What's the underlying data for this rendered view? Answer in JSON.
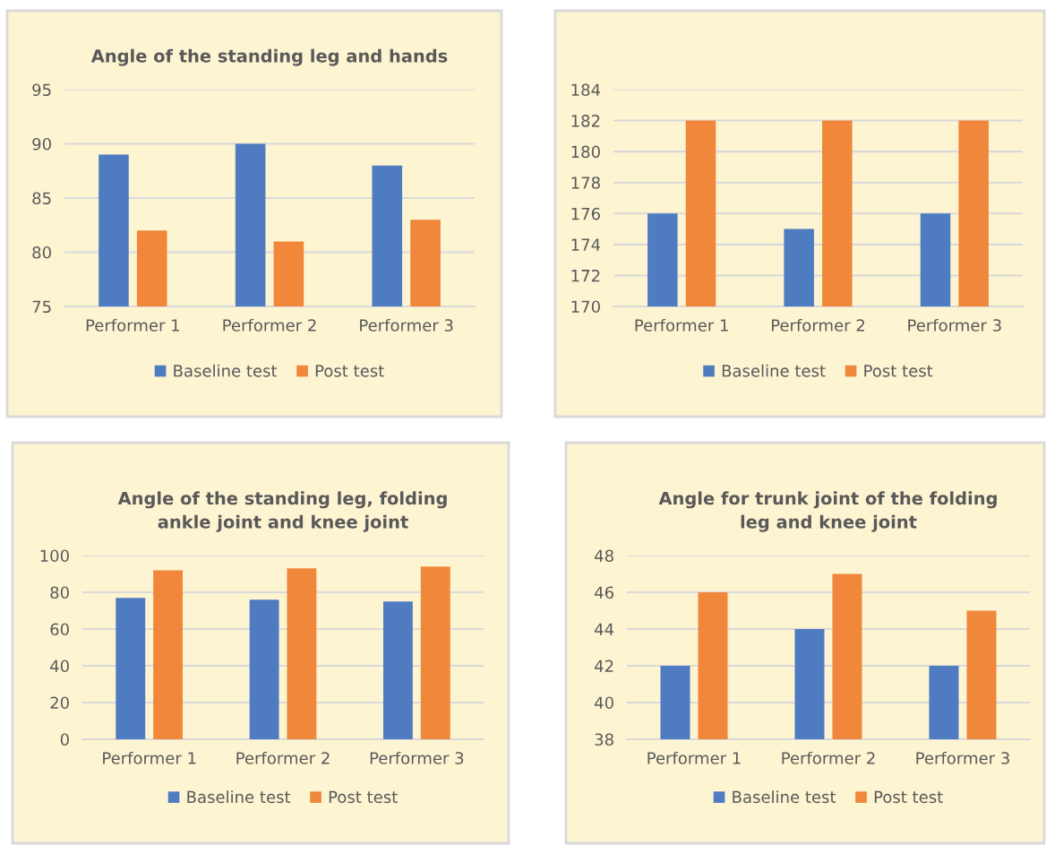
{
  "chart_data": [
    {
      "type": "bar",
      "title": "Angle of the standing leg and hands",
      "categories": [
        "Performer 1",
        "Performer 2",
        "Performer 3"
      ],
      "series": [
        {
          "name": "Baseline test",
          "color": "#4f7cc0",
          "values": [
            89,
            90,
            88
          ]
        },
        {
          "name": "Post test",
          "color": "#f0873a",
          "values": [
            82,
            81,
            83
          ]
        }
      ],
      "ylim": [
        75,
        95
      ],
      "yticks": [
        75,
        80,
        85,
        90,
        95
      ],
      "grid": "y",
      "legend": "bottom"
    },
    {
      "type": "bar",
      "categories": [
        "Performer 1",
        "Performer 2",
        "Performer 3"
      ],
      "series": [
        {
          "name": "Baseline test",
          "color": "#4f7cc0",
          "values": [
            176,
            175,
            176
          ]
        },
        {
          "name": "Post test",
          "color": "#f0873a",
          "values": [
            182,
            182,
            182
          ]
        }
      ],
      "ylim": [
        170,
        184
      ],
      "yticks": [
        170,
        172,
        174,
        176,
        178,
        180,
        182,
        184
      ],
      "grid": "y",
      "legend": "bottom"
    },
    {
      "type": "bar",
      "title": "Angle of the standing leg, folding\nankle joint and knee joint",
      "categories": [
        "Performer 1",
        "Performer 2",
        "Performer 3"
      ],
      "series": [
        {
          "name": "Baseline test",
          "color": "#4f7cc0",
          "values": [
            77,
            76,
            75
          ]
        },
        {
          "name": "Post test",
          "color": "#f0873a",
          "values": [
            92,
            93,
            94
          ]
        }
      ],
      "ylim": [
        0,
        100
      ],
      "yticks": [
        0,
        20,
        40,
        60,
        80,
        100
      ],
      "grid": "y",
      "legend": "bottom"
    },
    {
      "type": "bar",
      "title": "Angle for trunk joint of the folding\nleg and knee joint",
      "categories": [
        "Performer 1",
        "Performer 2",
        "Performer 3"
      ],
      "series": [
        {
          "name": "Baseline test",
          "color": "#4f7cc0",
          "values": [
            42,
            44,
            42
          ]
        },
        {
          "name": "Post test",
          "color": "#f0873a",
          "values": [
            46,
            47,
            45
          ]
        }
      ],
      "ylim": [
        38,
        48
      ],
      "yticks": [
        38,
        40,
        42,
        44,
        46,
        48
      ],
      "grid": "y",
      "legend": "bottom"
    }
  ]
}
